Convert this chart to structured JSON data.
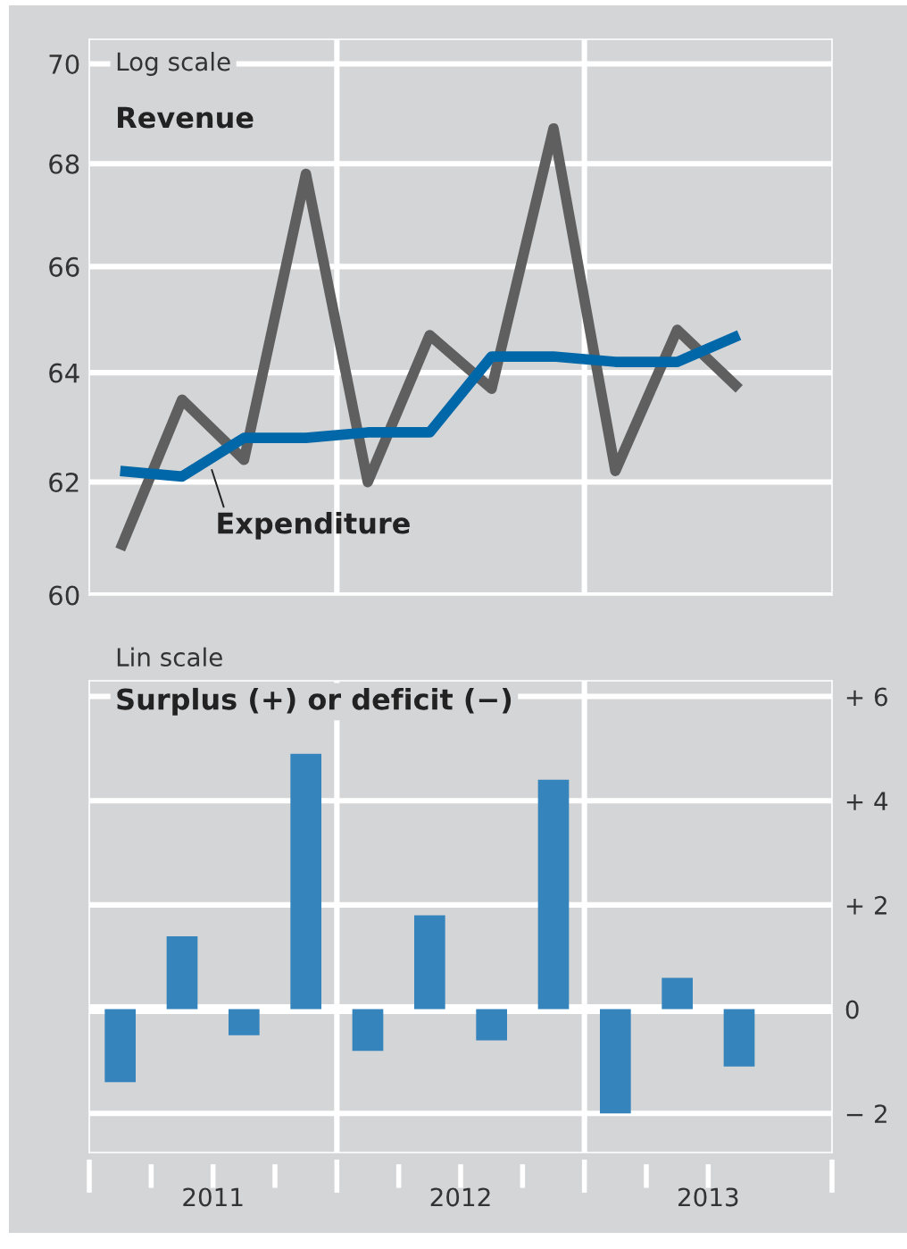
{
  "chart_data": [
    {
      "type": "line",
      "x": [
        2011.125,
        2011.375,
        2011.625,
        2011.875,
        2012.125,
        2012.375,
        2012.625,
        2012.875,
        2013.125,
        2013.375,
        2013.625
      ],
      "series": [
        {
          "name": "Revenue",
          "color": "#5f5f5f",
          "values": [
            60.8,
            63.5,
            62.4,
            67.8,
            62.0,
            64.7,
            63.7,
            68.7,
            62.2,
            64.8,
            63.7
          ]
        },
        {
          "name": "Expenditure",
          "color": "#0067a8",
          "values": [
            62.2,
            62.1,
            62.8,
            62.8,
            62.9,
            62.9,
            64.3,
            64.3,
            64.2,
            64.2,
            64.7
          ]
        }
      ],
      "log": "y",
      "xlim": [
        2011,
        2014
      ],
      "ylim": [
        60,
        70.5
      ],
      "yticks": [
        60,
        62,
        64,
        66,
        68,
        70
      ],
      "grid": "y",
      "tick_labels": "y",
      "ref_lines": [
        {
          "axis": "x",
          "value": 2012,
          "color": "#ffffff"
        },
        {
          "axis": "x",
          "value": 2013,
          "color": "#ffffff"
        }
      ],
      "annotations": [
        "Log scale"
      ]
    },
    {
      "type": "bar",
      "title": "Surplus (+) or deficit (−)",
      "x": [
        2011.125,
        2011.375,
        2011.625,
        2011.875,
        2012.125,
        2012.375,
        2012.625,
        2012.875,
        2013.125,
        2013.375,
        2013.625
      ],
      "values": [
        -1.4,
        1.4,
        -0.5,
        4.9,
        -0.8,
        1.8,
        -0.6,
        4.4,
        -2.0,
        0.6,
        -1.1
      ],
      "color": "#3584bb",
      "xlim": [
        2011,
        2014
      ],
      "ylim": [
        -2.75,
        6.3
      ],
      "yticks": [
        {
          "value": -2,
          "label": "− 2"
        },
        0,
        {
          "value": 2,
          "label": "+ 2"
        },
        {
          "value": 4,
          "label": "+ 4"
        },
        {
          "value": 6,
          "label": "+ 6"
        }
      ],
      "xticks": [
        {
          "value": 2011,
          "label": null
        },
        {
          "value": 2011.5,
          "label": "2011"
        },
        {
          "value": 2012,
          "label": null
        },
        {
          "value": 2012.5,
          "label": "2012"
        },
        {
          "value": 2013,
          "label": null
        },
        {
          "value": 2013.5,
          "label": "2013"
        },
        {
          "value": 2014,
          "label": null
        }
      ],
      "grid": "y",
      "ref_lines": [
        {
          "axis": "x",
          "value": 2012,
          "color": "#ffffff"
        },
        {
          "axis": "x",
          "value": 2013,
          "color": "#ffffff"
        },
        {
          "axis": "y",
          "value": 0,
          "color": "#ffffff"
        }
      ],
      "annotations": [
        "Lin scale"
      ]
    }
  ]
}
